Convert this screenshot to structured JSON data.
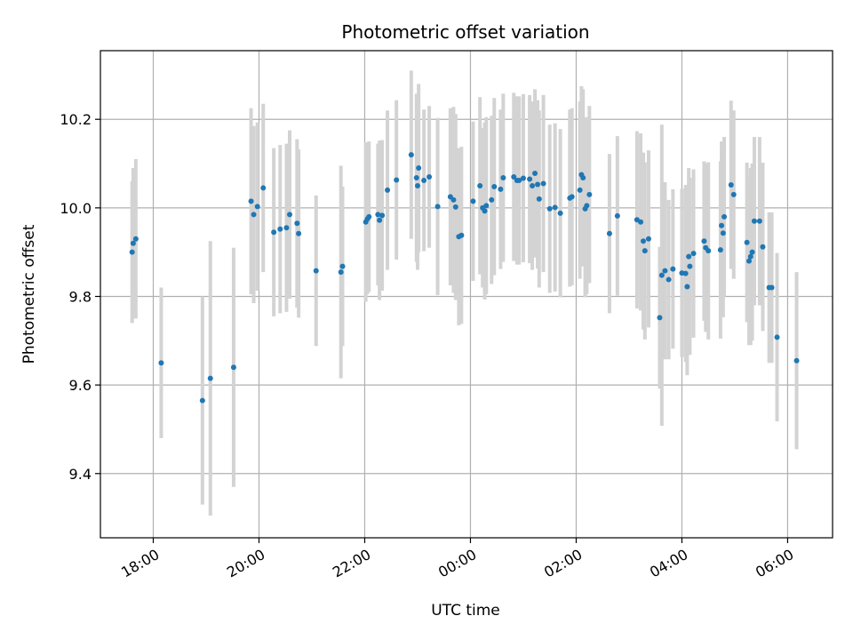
{
  "chart_data": {
    "type": "scatter",
    "title": "Photometric offset variation",
    "xlabel": "UTC time",
    "ylabel": "Photometric offset",
    "x_start_label": "17:00",
    "x_unit": "hours after 17:00 UTC",
    "xlim": [
      17.0,
      30.85
    ],
    "ylim": [
      9.255,
      10.355
    ],
    "x_ticks": [
      {
        "label": "18:00",
        "value": 18
      },
      {
        "label": "20:00",
        "value": 20
      },
      {
        "label": "22:00",
        "value": 22
      },
      {
        "label": "00:00",
        "value": 24
      },
      {
        "label": "02:00",
        "value": 26
      },
      {
        "label": "04:00",
        "value": 28
      },
      {
        "label": "06:00",
        "value": 30
      }
    ],
    "y_ticks": [
      {
        "label": "9.4",
        "value": 9.4
      },
      {
        "label": "9.6",
        "value": 9.6
      },
      {
        "label": "9.8",
        "value": 9.8
      },
      {
        "label": "10.0",
        "value": 10.0
      },
      {
        "label": "10.2",
        "value": 10.2
      }
    ],
    "grid": true,
    "colors": {
      "points": "#1f77b4",
      "errorbars": "#d3d3d3",
      "grid": "#b0b0b0"
    },
    "points": [
      [
        17.6,
        9.9,
        0.16
      ],
      [
        17.62,
        9.92,
        0.17
      ],
      [
        17.67,
        9.93,
        0.18
      ],
      [
        18.15,
        9.65,
        0.17
      ],
      [
        18.93,
        9.565,
        0.235
      ],
      [
        19.08,
        9.615,
        0.31
      ],
      [
        19.52,
        9.64,
        0.27
      ],
      [
        19.85,
        10.015,
        0.21
      ],
      [
        19.9,
        9.985,
        0.2
      ],
      [
        19.97,
        10.003,
        0.19
      ],
      [
        20.08,
        10.045,
        0.19
      ],
      [
        20.28,
        9.945,
        0.19
      ],
      [
        20.4,
        9.952,
        0.19
      ],
      [
        20.52,
        9.955,
        0.19
      ],
      [
        20.58,
        9.985,
        0.19
      ],
      [
        20.72,
        9.965,
        0.19
      ],
      [
        20.75,
        9.942,
        0.19
      ],
      [
        21.08,
        9.858,
        0.17
      ],
      [
        21.55,
        9.855,
        0.24
      ],
      [
        21.58,
        9.868,
        0.18
      ],
      [
        22.02,
        9.968,
        0.18
      ],
      [
        22.05,
        9.975,
        0.17
      ],
      [
        22.08,
        9.98,
        0.17
      ],
      [
        22.25,
        9.985,
        0.16
      ],
      [
        22.28,
        9.972,
        0.18
      ],
      [
        22.33,
        9.983,
        0.17
      ],
      [
        22.43,
        10.04,
        0.18
      ],
      [
        22.6,
        10.063,
        0.18
      ],
      [
        22.88,
        10.12,
        0.19
      ],
      [
        22.98,
        10.068,
        0.19
      ],
      [
        23.0,
        10.05,
        0.19
      ],
      [
        23.02,
        10.09,
        0.19
      ],
      [
        23.12,
        10.062,
        0.16
      ],
      [
        23.22,
        10.07,
        0.16
      ],
      [
        23.38,
        10.003,
        0.2
      ],
      [
        23.62,
        10.025,
        0.2
      ],
      [
        23.68,
        10.018,
        0.21
      ],
      [
        23.72,
        10.002,
        0.21
      ],
      [
        23.78,
        9.935,
        0.2
      ],
      [
        23.83,
        9.938,
        0.2
      ],
      [
        24.05,
        10.015,
        0.18
      ],
      [
        24.18,
        10.05,
        0.2
      ],
      [
        24.23,
        10.0,
        0.18
      ],
      [
        24.27,
        9.993,
        0.2
      ],
      [
        24.3,
        10.005,
        0.2
      ],
      [
        24.4,
        10.018,
        0.19
      ],
      [
        24.45,
        10.048,
        0.2
      ],
      [
        24.57,
        10.042,
        0.18
      ],
      [
        24.62,
        10.068,
        0.19
      ],
      [
        24.82,
        10.07,
        0.19
      ],
      [
        24.88,
        10.062,
        0.19
      ],
      [
        24.92,
        10.062,
        0.19
      ],
      [
        25.0,
        10.067,
        0.19
      ],
      [
        25.12,
        10.065,
        0.19
      ],
      [
        25.17,
        10.05,
        0.19
      ],
      [
        25.22,
        10.078,
        0.19
      ],
      [
        25.27,
        10.053,
        0.19
      ],
      [
        25.3,
        10.02,
        0.2
      ],
      [
        25.38,
        10.055,
        0.2
      ],
      [
        25.5,
        9.998,
        0.19
      ],
      [
        25.6,
        10.001,
        0.19
      ],
      [
        25.7,
        9.988,
        0.19
      ],
      [
        25.88,
        10.022,
        0.2
      ],
      [
        25.92,
        10.025,
        0.2
      ],
      [
        26.07,
        10.04,
        0.2
      ],
      [
        26.1,
        10.075,
        0.2
      ],
      [
        26.13,
        10.068,
        0.2
      ],
      [
        26.17,
        9.998,
        0.2
      ],
      [
        26.2,
        10.005,
        0.2
      ],
      [
        26.25,
        10.03,
        0.2
      ],
      [
        26.63,
        9.942,
        0.18
      ],
      [
        26.78,
        9.982,
        0.18
      ],
      [
        27.15,
        9.973,
        0.2
      ],
      [
        27.22,
        9.968,
        0.2
      ],
      [
        27.27,
        9.925,
        0.2
      ],
      [
        27.3,
        9.903,
        0.2
      ],
      [
        27.37,
        9.93,
        0.2
      ],
      [
        27.58,
        9.752,
        0.16
      ],
      [
        27.62,
        9.848,
        0.34
      ],
      [
        27.68,
        9.858,
        0.2
      ],
      [
        27.75,
        9.838,
        0.18
      ],
      [
        27.83,
        9.862,
        0.18
      ],
      [
        28.0,
        9.853,
        0.19
      ],
      [
        28.07,
        9.852,
        0.2
      ],
      [
        28.1,
        9.822,
        0.2
      ],
      [
        28.13,
        9.89,
        0.2
      ],
      [
        28.15,
        9.868,
        0.2
      ],
      [
        28.22,
        9.897,
        0.19
      ],
      [
        28.42,
        9.925,
        0.18
      ],
      [
        28.45,
        9.91,
        0.19
      ],
      [
        28.5,
        9.903,
        0.2
      ],
      [
        28.73,
        9.905,
        0.2
      ],
      [
        28.75,
        9.96,
        0.19
      ],
      [
        28.78,
        9.943,
        0.19
      ],
      [
        28.8,
        9.98,
        0.18
      ],
      [
        28.93,
        10.052,
        0.19
      ],
      [
        28.98,
        10.03,
        0.19
      ],
      [
        29.23,
        9.922,
        0.18
      ],
      [
        29.27,
        9.88,
        0.19
      ],
      [
        29.3,
        9.89,
        0.2
      ],
      [
        29.33,
        9.9,
        0.2
      ],
      [
        29.37,
        9.97,
        0.19
      ],
      [
        29.47,
        9.97,
        0.19
      ],
      [
        29.53,
        9.912,
        0.19
      ],
      [
        29.65,
        9.82,
        0.17
      ],
      [
        29.7,
        9.82,
        0.17
      ],
      [
        29.8,
        9.708,
        0.19
      ],
      [
        30.17,
        9.655,
        0.2
      ]
    ]
  }
}
